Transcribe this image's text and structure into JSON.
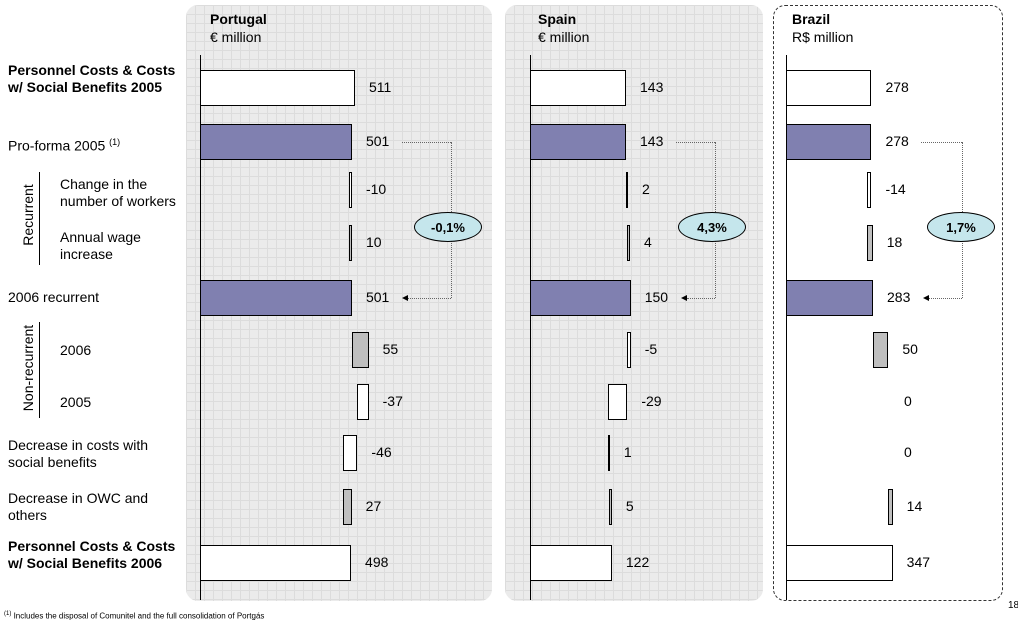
{
  "row_labels": {
    "pc2005": "Personnel Costs & Costs w/ Social Benefits 2005",
    "proforma": "Pro-forma 2005",
    "proforma_note": "(1)",
    "change_workers": "Change  in the number of workers",
    "wage_increase": "Annual wage increase",
    "recurrent2006": "2006 recurrent",
    "nr2006": "2006",
    "nr2005": "2005",
    "social_benefits": "Decrease in costs with social benefits",
    "owc": "Decrease in OWC and others",
    "pc2006": "Personnel Costs & Costs w/ Social Benefits 2006"
  },
  "group_labels": {
    "recurrent": "Recurrent",
    "non_recurrent": "Non-recurrent"
  },
  "colors": {
    "total": "#ffffff",
    "proforma": "#8080b0",
    "positive": "#bfbfbf",
    "negative": "#ffffff"
  },
  "chart_data": [
    {
      "type": "bar",
      "title": "Portugal",
      "unit": "€ million",
      "categories": [
        "Personnel Costs & Costs w/ Social Benefits 2005",
        "Pro-forma 2005",
        "Change in the number of workers",
        "Annual wage increase",
        "2006 recurrent",
        "2006",
        "2005",
        "Decrease in costs with social benefits",
        "Decrease in OWC and others",
        "Personnel Costs & Costs w/ Social Benefits 2006"
      ],
      "values": [
        511,
        501,
        -10,
        10,
        501,
        55,
        -37,
        -46,
        27,
        498
      ],
      "labels": [
        "511",
        "501",
        "-10",
        "10",
        "501",
        "55",
        "-37",
        "-46",
        "27",
        "498"
      ],
      "growth": "-0,1%"
    },
    {
      "type": "bar",
      "title": "Spain",
      "unit": "€ million",
      "categories": [
        "Personnel Costs & Costs w/ Social Benefits 2005",
        "Pro-forma 2005",
        "Change in the number of workers",
        "Annual wage increase",
        "2006 recurrent",
        "2006",
        "2005",
        "Decrease in costs with social benefits",
        "Decrease in OWC and others",
        "Personnel Costs & Costs w/ Social Benefits 2006"
      ],
      "values": [
        143,
        143,
        2,
        4,
        150,
        -5,
        -29,
        1,
        5,
        122
      ],
      "labels": [
        "143",
        "143",
        "2",
        "4",
        "150",
        "-5",
        "-29",
        "1",
        "5",
        "122"
      ],
      "growth": "4,3%"
    },
    {
      "type": "bar",
      "title": "Brazil",
      "unit": "R$  million",
      "categories": [
        "Personnel Costs & Costs w/ Social Benefits 2005",
        "Pro-forma 2005",
        "Change in the number of workers",
        "Annual wage increase",
        "2006 recurrent",
        "2006",
        "2005",
        "Decrease in costs with social benefits",
        "Decrease in OWC and others",
        "Personnel Costs & Costs w/ Social Benefits 2006"
      ],
      "values": [
        278,
        278,
        -14,
        18,
        283,
        50,
        0,
        0,
        14,
        347
      ],
      "labels": [
        "278",
        "278",
        "-14",
        "18",
        "283",
        "50",
        "0",
        "0",
        "14",
        "347"
      ],
      "growth": "1,7%"
    }
  ],
  "footnote": {
    "marker": "(1)",
    "text": " Includes the disposal of Comunitel and the full consolidation of Portgás"
  },
  "page_number": "18"
}
